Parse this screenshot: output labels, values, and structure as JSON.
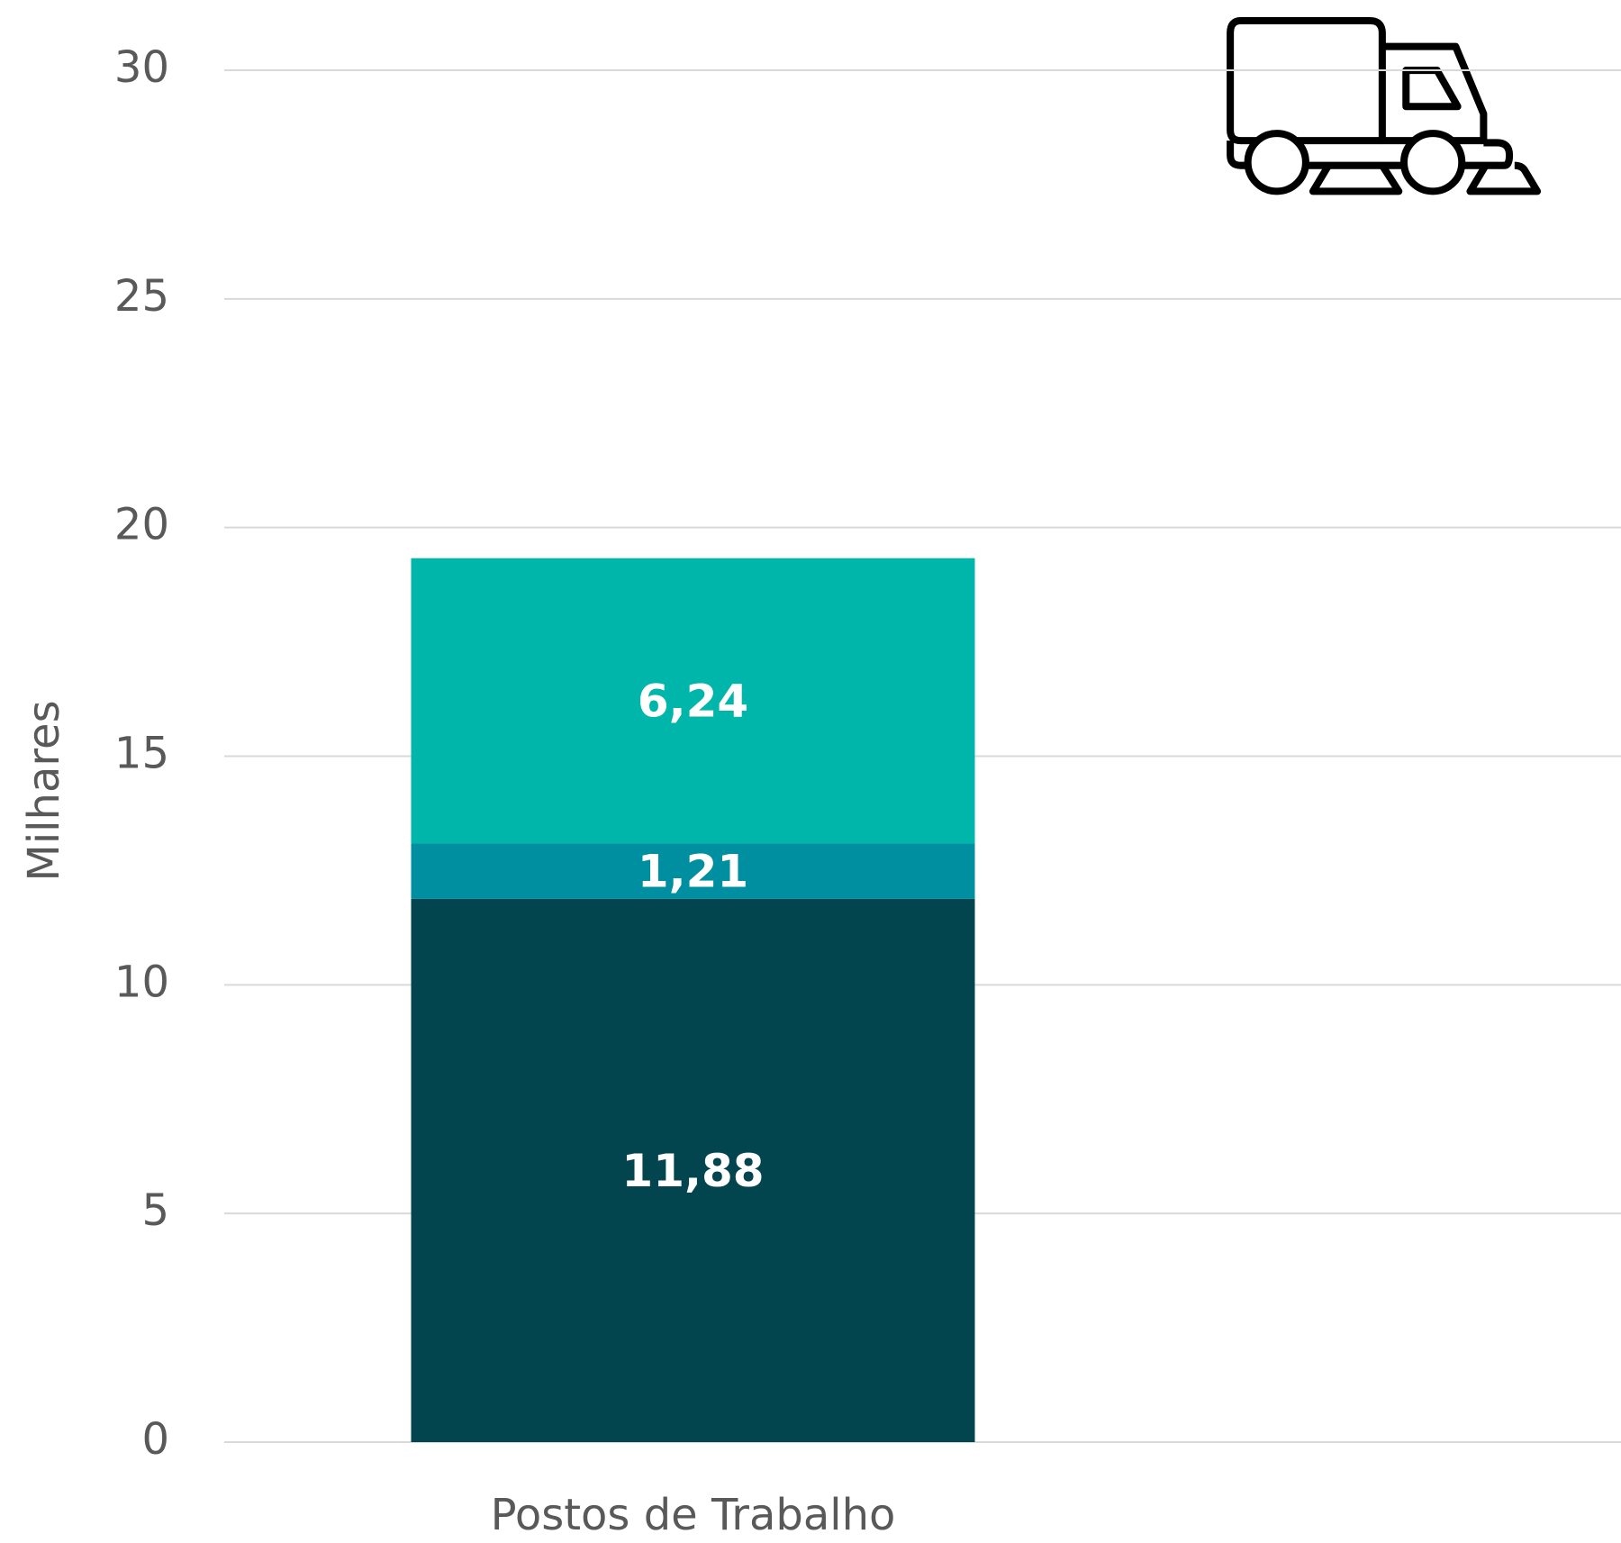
{
  "chart_data": {
    "type": "stacked_bar",
    "y_axis_label": "Milhares",
    "categories": [
      "Postos de Trabalho"
    ],
    "series": [
      {
        "color": "#02454f",
        "values": [
          11.88
        ],
        "value_labels": [
          "11,88"
        ]
      },
      {
        "color": "#008fa0",
        "values": [
          1.21
        ],
        "value_labels": [
          "1,21"
        ]
      },
      {
        "color": "#00b5aa",
        "values": [
          6.24
        ],
        "value_labels": [
          "6,24"
        ]
      }
    ],
    "ylim": [
      0,
      30
    ],
    "yticks": [
      0,
      5,
      10,
      15,
      20,
      25,
      30
    ],
    "grid": true
  }
}
